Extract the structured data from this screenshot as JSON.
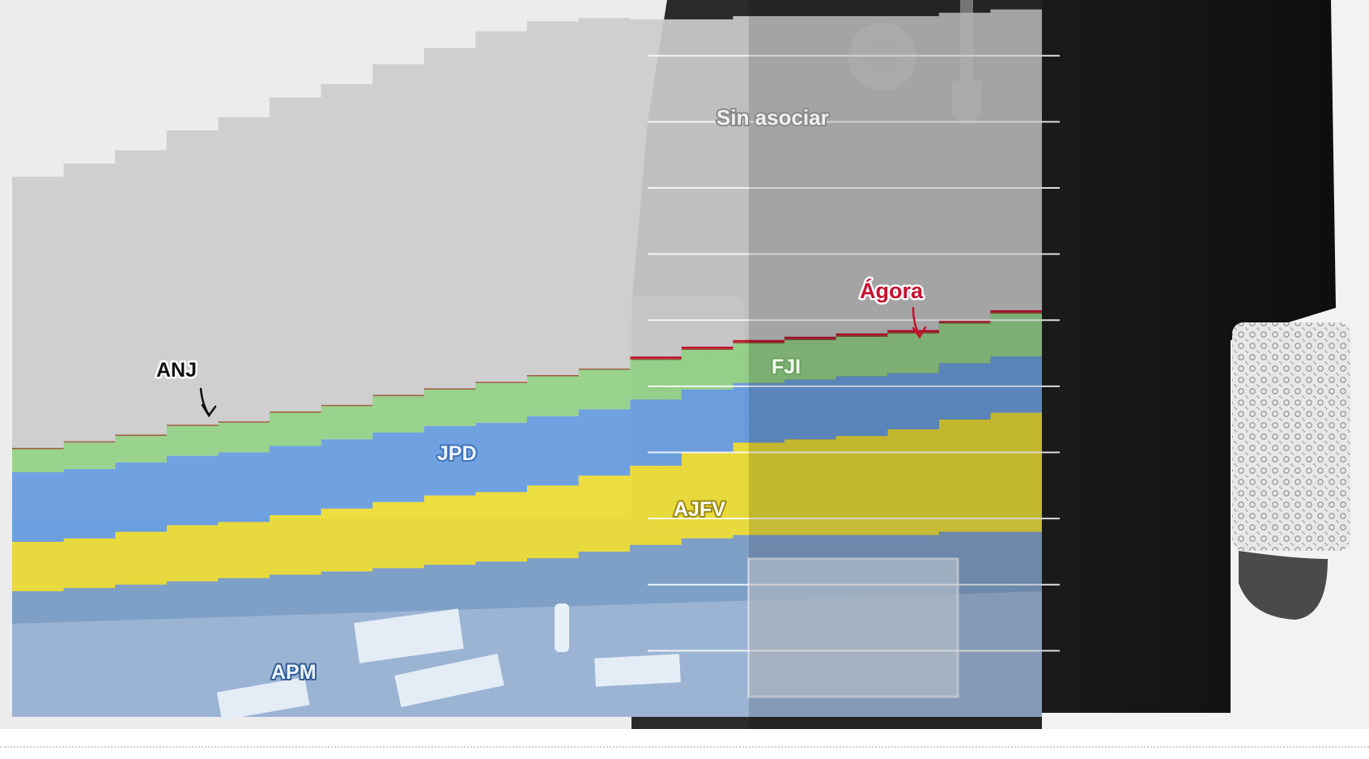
{
  "colors": {
    "background_left": "#ececec",
    "sin_asociar": "#cccccc",
    "fji": "#96d28a",
    "jpd": "#6b9fe0",
    "ajfv": "#ebdc3a",
    "apm": "#4a78b0",
    "anj": "#9a5a3a",
    "agora": "#c8102e",
    "robe": "#111111"
  },
  "labels": {
    "sin_asociar": "Sin asociar",
    "agora": "Ágora",
    "fji": "FJI",
    "anj": "ANJ",
    "jpd": "JPD",
    "ajfv": "AJFV",
    "apm": "APM"
  },
  "chart_data": {
    "type": "area",
    "stacked": true,
    "step": true,
    "title": "",
    "xlabel": "",
    "ylabel": "",
    "x": [
      1,
      2,
      3,
      4,
      5,
      6,
      7,
      8,
      9,
      10,
      11,
      12,
      13,
      14,
      15,
      16,
      17,
      18,
      19,
      20
    ],
    "ylim": [
      0,
      10.5
    ],
    "grid": true,
    "legend": "inline labels",
    "series": [
      {
        "name": "APM",
        "key": "apm",
        "color": "#4a78b0",
        "values": [
          1.9,
          1.95,
          2.0,
          2.05,
          2.1,
          2.15,
          2.2,
          2.25,
          2.3,
          2.35,
          2.4,
          2.5,
          2.6,
          2.7,
          2.75,
          2.75,
          2.75,
          2.75,
          2.8,
          2.8
        ]
      },
      {
        "name": "AJFV",
        "key": "ajfv",
        "color": "#ebdc3a",
        "values": [
          0.75,
          0.75,
          0.8,
          0.85,
          0.85,
          0.9,
          0.95,
          1.0,
          1.05,
          1.05,
          1.1,
          1.15,
          1.2,
          1.3,
          1.4,
          1.45,
          1.5,
          1.6,
          1.7,
          1.8
        ]
      },
      {
        "name": "JPD",
        "key": "jpd",
        "color": "#6b9fe0",
        "values": [
          1.05,
          1.05,
          1.05,
          1.05,
          1.05,
          1.05,
          1.05,
          1.05,
          1.05,
          1.05,
          1.05,
          1.0,
          1.0,
          0.95,
          0.9,
          0.9,
          0.9,
          0.85,
          0.85,
          0.85
        ]
      },
      {
        "name": "FJI",
        "key": "fji",
        "color": "#96d28a",
        "values": [
          0.35,
          0.4,
          0.4,
          0.45,
          0.45,
          0.5,
          0.5,
          0.55,
          0.55,
          0.6,
          0.6,
          0.6,
          0.6,
          0.6,
          0.6,
          0.6,
          0.6,
          0.6,
          0.6,
          0.65
        ]
      },
      {
        "name": "ANJ",
        "key": "anj",
        "color": "#9a5a3a",
        "values": [
          0.02,
          0.02,
          0.02,
          0.02,
          0.02,
          0.02,
          0.02,
          0.02,
          0.02,
          0.02,
          0.02,
          0.02,
          0.02,
          0.02,
          0.02,
          0.02,
          0.02,
          0.02,
          0.02,
          0.02
        ]
      },
      {
        "name": "Ágora",
        "key": "agora",
        "color": "#c8102e",
        "values": [
          0,
          0,
          0,
          0,
          0,
          0,
          0,
          0,
          0,
          0,
          0,
          0,
          0.03,
          0.03,
          0.03,
          0.03,
          0.03,
          0.03,
          0.03,
          0.03
        ]
      },
      {
        "name": "Sin asociar",
        "key": "sin_asociar",
        "color": "#cccccc",
        "values": [
          4.1,
          4.2,
          4.3,
          4.45,
          4.6,
          4.75,
          4.85,
          5.0,
          5.15,
          5.3,
          5.35,
          5.3,
          5.1,
          4.95,
          4.9,
          4.85,
          4.8,
          4.75,
          4.65,
          4.55
        ]
      }
    ]
  }
}
